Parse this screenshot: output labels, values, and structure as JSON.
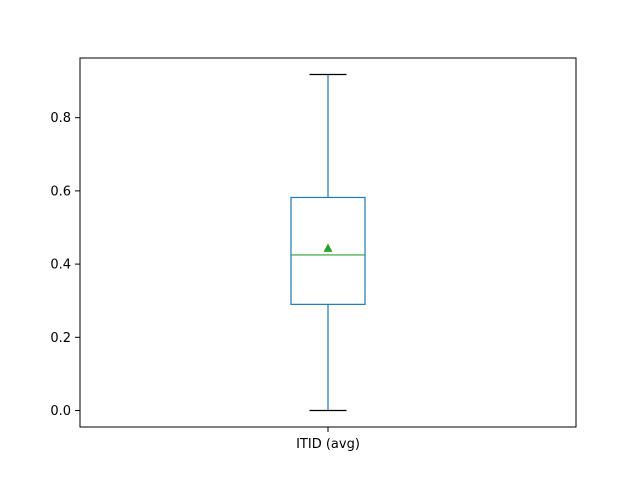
{
  "chart_data": {
    "type": "box",
    "categories": [
      "ITID (avg)"
    ],
    "series": [
      {
        "whisker_low": 0.0,
        "q1": 0.29,
        "median": 0.425,
        "mean": 0.443,
        "q3": 0.582,
        "whisker_high": 0.918
      }
    ],
    "ylim": [
      -0.045,
      0.963
    ],
    "yticks": [
      0.0,
      0.2,
      0.4,
      0.6,
      0.8
    ],
    "ytick_labels": [
      "0.0",
      "0.2",
      "0.4",
      "0.6",
      "0.8"
    ],
    "grid": false,
    "colors": {
      "box": "#1f77b4",
      "median": "#2ca02c",
      "mean": "#2ca02c",
      "axes": "#000000"
    }
  }
}
